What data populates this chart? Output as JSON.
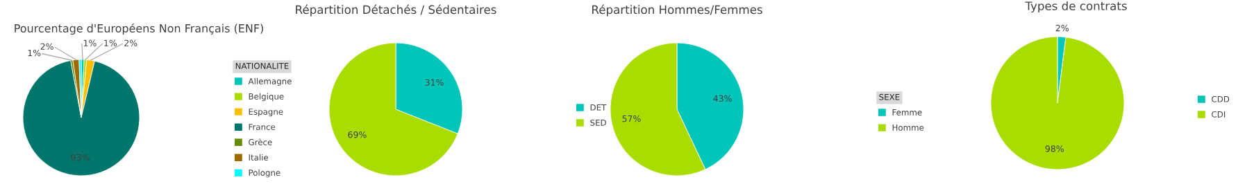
{
  "chart_data": [
    {
      "type": "pie",
      "title": "Pourcentage d'Européens Non Français (ENF)",
      "legend_title": "NATIONALITE",
      "legend": "right",
      "categories": [
        "Allemagne",
        "Belgique",
        "Espagne",
        "France",
        "Grèce",
        "Italie",
        "Pologne"
      ],
      "values": [
        0.8,
        0.7,
        2.2,
        93.4,
        0.6,
        1.7,
        0.6
      ],
      "value_labels": [
        "1%",
        "1%",
        "2%",
        "93%",
        "1%",
        "2%",
        null
      ],
      "colors": [
        "#00c5b9",
        "#a9dc00",
        "#ffbf00",
        "#00766c",
        "#668a00",
        "#9c6b00",
        "#00ffff"
      ]
    },
    {
      "type": "pie",
      "title": "Répartition Détachés / Sédentaires",
      "legend": "right",
      "categories": [
        "DET",
        "SED"
      ],
      "values": [
        31,
        69
      ],
      "value_labels": [
        "31%",
        "69%"
      ],
      "colors": [
        "#00c5b9",
        "#a9dc00"
      ]
    },
    {
      "type": "pie",
      "title": "Répartition Hommes/Femmes",
      "legend_title": "SEXE",
      "legend": "right",
      "categories": [
        "Femme",
        "Homme"
      ],
      "values": [
        43,
        57
      ],
      "value_labels": [
        "43%",
        "57%"
      ],
      "colors": [
        "#00c5b9",
        "#a9dc00"
      ]
    },
    {
      "type": "pie",
      "title": "Types de contrats",
      "legend": "right",
      "categories": [
        "CDD",
        "CDI"
      ],
      "values": [
        2,
        98
      ],
      "value_labels": [
        "2%",
        "98%"
      ],
      "colors": [
        "#00c5b9",
        "#a9dc00"
      ]
    }
  ]
}
